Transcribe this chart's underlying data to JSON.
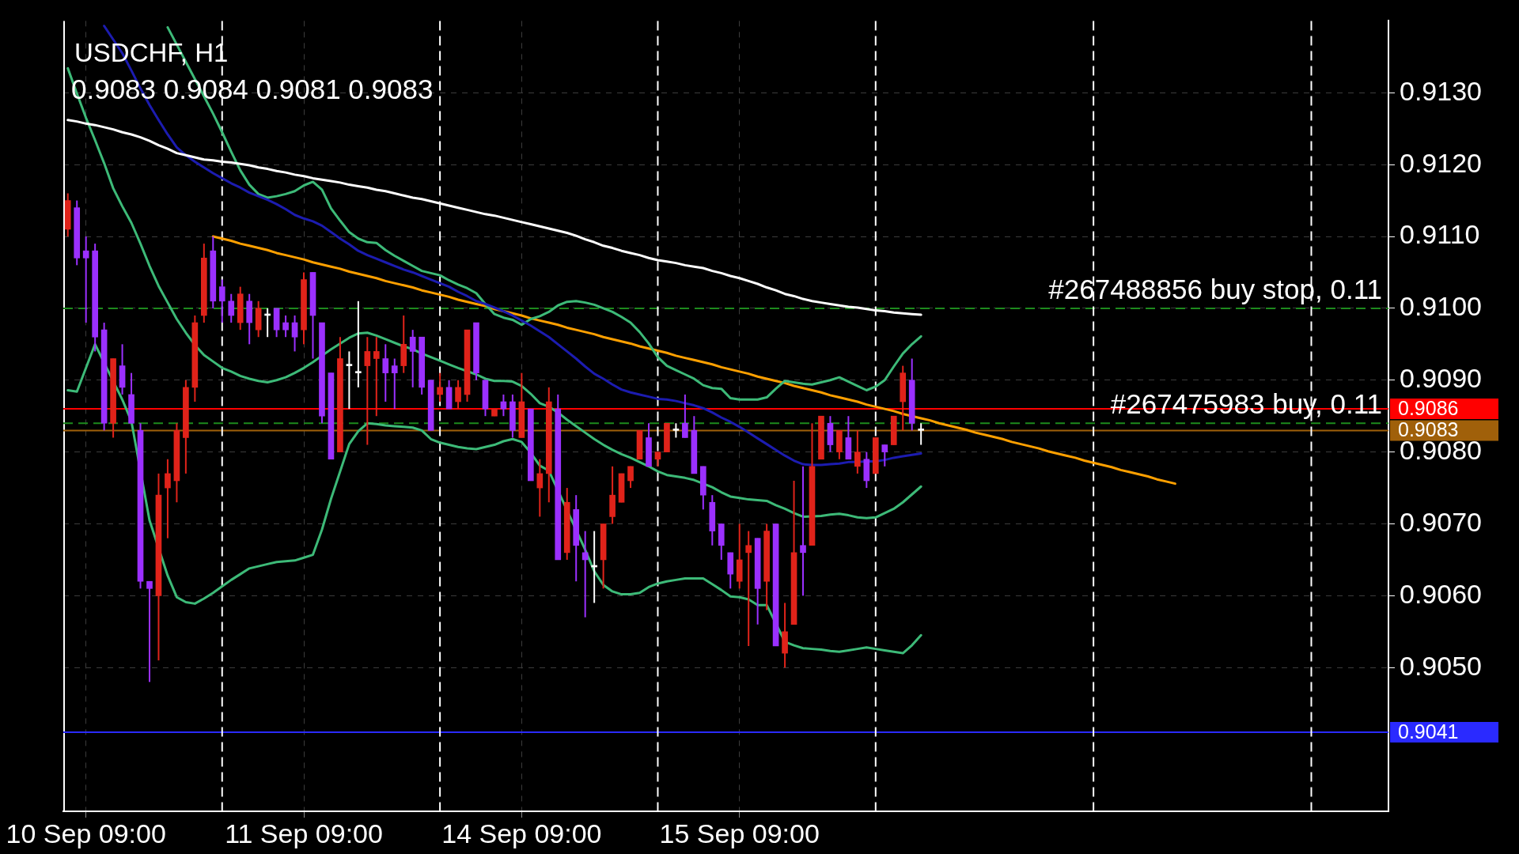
{
  "chart_data": {
    "type": "candlestick",
    "title": "USDCHF, H1",
    "subtitle": "0.9083 0.9084 0.9081 0.9083",
    "categories": [
      null,
      null,
      "10 Sep 09:00",
      null,
      null,
      null,
      null,
      null,
      null,
      null,
      null,
      null,
      null,
      null,
      null,
      null,
      null,
      null,
      null,
      null,
      null,
      null,
      null,
      null,
      null,
      null,
      "11 Sep 09:00",
      null,
      null,
      null,
      null,
      null,
      null,
      null,
      null,
      null,
      null,
      null,
      null,
      null,
      null,
      null,
      null,
      null,
      null,
      null,
      null,
      null,
      null,
      null,
      "14 Sep 09:00",
      null,
      null,
      null,
      null,
      null,
      null,
      null,
      null,
      null,
      null,
      null,
      null,
      null,
      null,
      null,
      null,
      null,
      null,
      null,
      null,
      null,
      null,
      null,
      "15 Sep 09:00",
      null,
      null,
      null,
      null,
      null,
      null,
      null,
      null,
      null,
      null,
      null,
      null,
      null,
      null,
      null,
      null,
      null,
      null,
      null,
      null,
      null,
      null,
      null,
      null,
      null,
      null,
      null,
      null,
      null,
      null,
      null,
      null,
      null,
      null,
      null,
      null,
      null,
      null,
      null,
      null,
      null,
      null,
      null,
      null,
      null,
      null,
      null,
      null,
      null,
      null,
      null,
      null,
      null,
      null,
      null,
      null,
      null,
      null,
      null,
      null,
      null,
      null,
      null,
      null,
      null,
      null,
      null,
      null,
      null,
      null,
      null
    ],
    "ohlc": [
      [
        0.9111,
        0.9116,
        0.911,
        0.9115
      ],
      [
        0.9114,
        0.9115,
        0.9106,
        0.9107
      ],
      [
        0.9108,
        0.911,
        0.9098,
        0.9107
      ],
      [
        0.9108,
        0.9109,
        0.9094,
        0.9096
      ],
      [
        0.9097,
        0.9098,
        0.9083,
        0.9084
      ],
      [
        0.9084,
        0.9093,
        0.9082,
        0.9093
      ],
      [
        0.9092,
        0.9095,
        0.9088,
        0.9089
      ],
      [
        0.9088,
        0.9091,
        0.9084,
        0.9084
      ],
      [
        0.9083,
        0.9084,
        0.9061,
        0.9062
      ],
      [
        0.9062,
        0.9062,
        0.9048,
        0.9061
      ],
      [
        0.906,
        0.9077,
        0.9051,
        0.9074
      ],
      [
        0.9075,
        0.9079,
        0.9068,
        0.9077
      ],
      [
        0.9076,
        0.9084,
        0.9073,
        0.9083
      ],
      [
        0.9082,
        0.909,
        0.9077,
        0.9089
      ],
      [
        0.9089,
        0.9099,
        0.9087,
        0.9098
      ],
      [
        0.9099,
        0.9109,
        0.9098,
        0.9107
      ],
      [
        0.9108,
        0.911,
        0.91,
        0.9101
      ],
      [
        0.9103,
        0.9104,
        0.9098,
        0.9101
      ],
      [
        0.9101,
        0.9102,
        0.9098,
        0.9099
      ],
      [
        0.9098,
        0.9103,
        0.9097,
        0.9102
      ],
      [
        0.9101,
        0.9102,
        0.9095,
        0.9098
      ],
      [
        0.9097,
        0.9101,
        0.9096,
        0.91
      ],
      [
        0.9099,
        0.91,
        0.9096,
        0.9099
      ],
      [
        0.91,
        0.91,
        0.9096,
        0.9097
      ],
      [
        0.9098,
        0.9099,
        0.9096,
        0.9097
      ],
      [
        0.9098,
        0.9099,
        0.9094,
        0.9096
      ],
      [
        0.9097,
        0.9105,
        0.9095,
        0.9104
      ],
      [
        0.9105,
        0.9105,
        0.9093,
        0.9099
      ],
      [
        0.9098,
        0.9098,
        0.9084,
        0.9085
      ],
      [
        0.9091,
        0.9091,
        0.9079,
        0.9079
      ],
      [
        0.908,
        0.9096,
        0.908,
        0.9093
      ],
      [
        0.9092,
        0.9094,
        0.9086,
        0.9092
      ],
      [
        0.9091,
        0.9101,
        0.9089,
        0.9091
      ],
      [
        0.9092,
        0.9096,
        0.9081,
        0.9094
      ],
      [
        0.9093,
        0.9096,
        0.9085,
        0.9094
      ],
      [
        0.9093,
        0.9095,
        0.9087,
        0.9091
      ],
      [
        0.9092,
        0.9093,
        0.9086,
        0.9091
      ],
      [
        0.9092,
        0.9099,
        0.9091,
        0.9095
      ],
      [
        0.9096,
        0.9097,
        0.9089,
        0.9094
      ],
      [
        0.9096,
        0.9096,
        0.9088,
        0.9089
      ],
      [
        0.909,
        0.909,
        0.9083,
        0.9083
      ],
      [
        0.9088,
        0.9091,
        0.9087,
        0.9089
      ],
      [
        0.9089,
        0.909,
        0.9086,
        0.9086
      ],
      [
        0.9087,
        0.909,
        0.9086,
        0.9089
      ],
      [
        0.9088,
        0.9097,
        0.9087,
        0.9097
      ],
      [
        0.9098,
        0.9098,
        0.909,
        0.9091
      ],
      [
        0.909,
        0.909,
        0.9085,
        0.9086
      ],
      [
        0.9085,
        0.9086,
        0.9085,
        0.9086
      ],
      [
        0.9087,
        0.9088,
        0.9085,
        0.9086
      ],
      [
        0.9087,
        0.9088,
        0.9082,
        0.9083
      ],
      [
        0.9082,
        0.9091,
        0.9082,
        0.9087
      ],
      [
        0.9086,
        0.9086,
        0.9076,
        0.9076
      ],
      [
        0.9075,
        0.9079,
        0.9071,
        0.9077
      ],
      [
        0.9077,
        0.9089,
        0.9073,
        0.9087
      ],
      [
        0.9086,
        0.9088,
        0.9065,
        0.9065
      ],
      [
        0.9066,
        0.9075,
        0.9065,
        0.9073
      ],
      [
        0.9072,
        0.9074,
        0.9062,
        0.9067
      ],
      [
        0.9066,
        0.9069,
        0.9057,
        0.9065
      ],
      [
        0.9064,
        0.9069,
        0.9059,
        0.9064
      ],
      [
        0.9065,
        0.907,
        0.9061,
        0.907
      ],
      [
        0.9071,
        0.9078,
        0.907,
        0.9074
      ],
      [
        0.9073,
        0.9077,
        0.9073,
        0.9077
      ],
      [
        0.9076,
        0.9078,
        0.9075,
        0.9078
      ],
      [
        0.9079,
        0.9083,
        0.9079,
        0.9083
      ],
      [
        0.9082,
        0.9084,
        0.9078,
        0.9078
      ],
      [
        0.9079,
        0.908,
        0.9078,
        0.908
      ],
      [
        0.908,
        0.9084,
        0.908,
        0.9084
      ],
      [
        0.9083,
        0.9084,
        0.9082,
        0.9083
      ],
      [
        0.9084,
        0.9088,
        0.9082,
        0.9082
      ],
      [
        0.9083,
        0.9085,
        0.9077,
        0.9077
      ],
      [
        0.9078,
        0.9078,
        0.9072,
        0.9074
      ],
      [
        0.9073,
        0.9074,
        0.9067,
        0.9069
      ],
      [
        0.907,
        0.907,
        0.9065,
        0.9067
      ],
      [
        0.9066,
        0.9066,
        0.9061,
        0.9063
      ],
      [
        0.9062,
        0.907,
        0.9061,
        0.9065
      ],
      [
        0.9066,
        0.9069,
        0.9053,
        0.9067
      ],
      [
        0.9068,
        0.9068,
        0.9056,
        0.9061
      ],
      [
        0.9062,
        0.907,
        0.9058,
        0.9069
      ],
      [
        0.907,
        0.907,
        0.9053,
        0.9053
      ],
      [
        0.9052,
        0.9059,
        0.905,
        0.9055
      ],
      [
        0.9056,
        0.9076,
        0.9056,
        0.9066
      ],
      [
        0.9067,
        0.9078,
        0.906,
        0.9066
      ],
      [
        0.9067,
        0.9084,
        0.9067,
        0.9078
      ],
      [
        0.9079,
        0.9085,
        0.9079,
        0.9085
      ],
      [
        0.9084,
        0.9085,
        0.908,
        0.9081
      ],
      [
        0.908,
        0.9083,
        0.9079,
        0.9083
      ],
      [
        0.9082,
        0.9085,
        0.9079,
        0.9079
      ],
      [
        0.9078,
        0.9083,
        0.9077,
        0.908
      ],
      [
        0.9079,
        0.908,
        0.9075,
        0.9076
      ],
      [
        0.9077,
        0.9082,
        0.9077,
        0.9082
      ],
      [
        0.9081,
        0.9081,
        0.9078,
        0.908
      ],
      [
        0.9081,
        0.9085,
        0.9081,
        0.9085
      ],
      [
        0.9087,
        0.9092,
        0.9083,
        0.9091
      ],
      [
        0.909,
        0.9093,
        0.9083,
        0.9084
      ],
      [
        0.9083,
        0.9084,
        0.9081,
        0.9083
      ],
      null,
      null,
      null,
      null,
      null,
      null,
      null,
      null,
      null,
      null,
      null,
      null,
      null,
      null,
      null,
      null,
      null,
      null,
      null,
      null,
      null,
      null,
      null,
      null,
      null,
      null,
      null,
      null,
      null,
      null,
      null,
      null,
      null,
      null,
      null,
      null,
      null,
      null,
      null,
      null,
      null,
      null,
      null,
      null,
      null,
      null,
      null,
      null,
      null,
      null,
      null
    ],
    "colors": [
      "#e0231a",
      "#9b30ff",
      "#9b30ff",
      "#9b30ff",
      "#9b30ff",
      "#e0231a",
      "#9b30ff",
      "#9b30ff",
      "#9b30ff",
      "#9b30ff",
      "#e0231a",
      "#e0231a",
      "#e0231a",
      "#e0231a",
      "#e0231a",
      "#e0231a",
      "#9b30ff",
      "#9b30ff",
      "#9b30ff",
      "#e0231a",
      "#9b30ff",
      "#e0231a",
      "#ffffff",
      "#9b30ff",
      "#9b30ff",
      "#9b30ff",
      "#e0231a",
      "#9b30ff",
      "#9b30ff",
      "#9b30ff",
      "#e0231a",
      "#ffffff",
      "#ffffff",
      "#e0231a",
      "#e0231a",
      "#9b30ff",
      "#9b30ff",
      "#e0231a",
      "#9b30ff",
      "#9b30ff",
      "#9b30ff",
      "#e0231a",
      "#9b30ff",
      "#e0231a",
      "#e0231a",
      "#9b30ff",
      "#9b30ff",
      "#e0231a",
      "#9b30ff",
      "#9b30ff",
      "#e0231a",
      "#9b30ff",
      "#e0231a",
      "#e0231a",
      "#9b30ff",
      "#e0231a",
      "#9b30ff",
      "#9b30ff",
      "#ffffff",
      "#e0231a",
      "#e0231a",
      "#e0231a",
      "#e0231a",
      "#e0231a",
      "#9b30ff",
      "#e0231a",
      "#e0231a",
      "#ffffff",
      "#9b30ff",
      "#9b30ff",
      "#9b30ff",
      "#9b30ff",
      "#9b30ff",
      "#9b30ff",
      "#e0231a",
      "#e0231a",
      "#9b30ff",
      "#e0231a",
      "#9b30ff",
      "#e0231a",
      "#e0231a",
      "#9b30ff",
      "#e0231a",
      "#e0231a",
      "#9b30ff",
      "#e0231a",
      "#9b30ff",
      "#e0231a",
      "#9b30ff",
      "#e0231a",
      "#9b30ff",
      "#e0231a",
      "#e0231a",
      "#9b30ff",
      "#ffffff",
      null,
      null,
      null,
      null,
      null,
      null,
      null,
      null,
      null,
      null,
      null,
      null,
      null,
      null,
      null,
      null,
      null,
      null,
      null,
      null,
      null,
      null,
      null,
      null,
      null,
      null,
      null,
      null,
      null,
      null,
      null,
      null,
      null,
      null,
      null,
      null,
      null,
      null,
      null,
      null,
      null,
      null,
      null,
      null,
      null,
      null,
      null,
      null,
      null,
      null,
      null
    ],
    "series": [
      {
        "type": "line",
        "color": "#ffffff",
        "values": [
          0.91262,
          0.9126,
          0.91257,
          0.91255,
          0.91252,
          0.91249,
          0.91245,
          0.91242,
          0.91238,
          0.91233,
          0.91227,
          0.91222,
          0.91216,
          0.91213,
          0.9121,
          0.91207,
          0.91206,
          0.91204,
          0.91203,
          0.91201,
          0.91199,
          0.91196,
          0.91194,
          0.91191,
          0.91189,
          0.91186,
          0.91184,
          0.91181,
          0.91179,
          0.91177,
          0.91175,
          0.91172,
          0.9117,
          0.91168,
          0.91165,
          0.91163,
          0.9116,
          0.91157,
          0.91154,
          0.91152,
          0.91149,
          0.91146,
          0.91143,
          0.9114,
          0.91137,
          0.91134,
          0.91131,
          0.91129,
          0.91126,
          0.91123,
          0.9112,
          0.91117,
          0.91114,
          0.91111,
          0.91108,
          0.91105,
          0.91101,
          0.91096,
          0.91092,
          0.91087,
          0.91084,
          0.9108,
          0.91077,
          0.91074,
          0.9107,
          0.91067,
          0.91065,
          0.91063,
          0.9106,
          0.91058,
          0.91056,
          0.91052,
          0.91049,
          0.91045,
          0.91042,
          0.91038,
          0.91034,
          0.91029,
          0.91025,
          0.9102,
          0.91017,
          0.91013,
          0.9101,
          0.91008,
          0.91006,
          0.91004,
          0.91002,
          0.91001,
          0.90999,
          0.90997,
          0.90996,
          0.90994,
          0.90993,
          0.90992,
          0.90991,
          null,
          null,
          null,
          null,
          null,
          null,
          null,
          null,
          null,
          null,
          null,
          null,
          null,
          null,
          null,
          null,
          null,
          null,
          null,
          null,
          null,
          null,
          null,
          null,
          null,
          null,
          null,
          null,
          null,
          null,
          null,
          null,
          null,
          null,
          null,
          null,
          null,
          null,
          null,
          null,
          null,
          null,
          null,
          null,
          null,
          null,
          null,
          null,
          null,
          null,
          null
        ]
      },
      {
        "type": "line",
        "color": "#1c1cb0",
        "values": [
          null,
          null,
          null,
          null,
          0.91393,
          0.91374,
          0.91355,
          0.91331,
          0.91306,
          0.91283,
          0.91262,
          0.91242,
          0.91224,
          0.91213,
          0.91204,
          0.91196,
          0.91188,
          0.91181,
          0.91174,
          0.91168,
          0.91161,
          0.91156,
          0.91151,
          0.91145,
          0.91138,
          0.9113,
          0.91125,
          0.91121,
          0.91115,
          0.91106,
          0.91097,
          0.91089,
          0.9108,
          0.91074,
          0.91069,
          0.91064,
          0.91059,
          0.91054,
          0.9105,
          0.91045,
          0.9104,
          0.91035,
          0.9103,
          0.91023,
          0.91017,
          0.9101,
          0.91006,
          0.91001,
          0.90996,
          0.9099,
          0.90983,
          0.90976,
          0.90968,
          0.9096,
          0.9095,
          0.9094,
          0.9093,
          0.90919,
          0.90909,
          0.90902,
          0.90894,
          0.90887,
          0.90883,
          0.9088,
          0.90877,
          0.90874,
          0.90873,
          0.90871,
          0.90868,
          0.90865,
          0.90861,
          0.90855,
          0.90848,
          0.90842,
          0.90835,
          0.90827,
          0.90819,
          0.90811,
          0.90803,
          0.90795,
          0.90788,
          0.90783,
          0.90782,
          0.90782,
          0.90783,
          0.90784,
          0.90786,
          0.90786,
          0.90787,
          0.90787,
          0.90789,
          0.90792,
          0.90794,
          0.90796,
          0.90798,
          null,
          null,
          null,
          null,
          null,
          null,
          null,
          null,
          null,
          null,
          null,
          null,
          null,
          null,
          null,
          null,
          null,
          null,
          null,
          null,
          null,
          null,
          null,
          null,
          null,
          null,
          null,
          null,
          null,
          null,
          null,
          null,
          null,
          null,
          null,
          null,
          null,
          null,
          null,
          null,
          null,
          null,
          null,
          null,
          null,
          null,
          null,
          null,
          null,
          null,
          null
        ]
      },
      {
        "type": "line",
        "color": "#3dba78",
        "values": [
          null,
          null,
          null,
          null,
          null,
          null,
          null,
          null,
          null,
          null,
          null,
          0.91391,
          0.91367,
          0.91343,
          0.91319,
          0.91295,
          0.91271,
          0.91245,
          0.91218,
          0.91192,
          0.91172,
          0.91159,
          0.91154,
          0.91156,
          0.91159,
          0.91163,
          0.91171,
          0.91176,
          0.91165,
          0.91139,
          0.91122,
          0.91106,
          0.91097,
          0.91092,
          0.91091,
          0.91081,
          0.91073,
          0.91066,
          0.91059,
          0.91052,
          0.91049,
          0.91046,
          0.91039,
          0.91033,
          0.91028,
          0.91021,
          0.91006,
          0.90992,
          0.90987,
          0.90984,
          0.90977,
          0.90985,
          0.90989,
          0.90995,
          0.91004,
          0.91009,
          0.9101,
          0.91008,
          0.91005,
          0.91,
          0.90995,
          0.90988,
          0.9098,
          0.90967,
          0.90951,
          0.90932,
          0.9092,
          0.90914,
          0.90908,
          0.90902,
          0.90893,
          0.90889,
          0.90888,
          0.90875,
          0.90873,
          0.90873,
          0.90873,
          0.90876,
          0.90888,
          0.90899,
          0.90897,
          0.90895,
          0.90894,
          0.90897,
          0.909,
          0.90904,
          0.90898,
          0.90892,
          0.90886,
          0.90891,
          0.909,
          0.90919,
          0.90937,
          0.9095,
          0.90961,
          null,
          null,
          null,
          null,
          null,
          null,
          null,
          null,
          null,
          null,
          null,
          null,
          null,
          null,
          null,
          null,
          null,
          null,
          null,
          null,
          null,
          null,
          null,
          null,
          null,
          null,
          null,
          null,
          null,
          null,
          null,
          null,
          null,
          null,
          null,
          null,
          null,
          null,
          null,
          null,
          null,
          null,
          null,
          null,
          null,
          null,
          null,
          null,
          null,
          null,
          null
        ]
      },
      {
        "type": "line",
        "color": "#3dba78",
        "values": [
          0.91334,
          0.91299,
          0.91265,
          0.91234,
          0.91202,
          0.91167,
          0.91142,
          0.91119,
          0.9109,
          0.91059,
          0.91031,
          0.91008,
          0.90985,
          0.90966,
          0.90949,
          0.90935,
          0.90926,
          0.90917,
          0.90912,
          0.90906,
          0.90902,
          0.90899,
          0.90897,
          0.909,
          0.90904,
          0.9091,
          0.90917,
          0.90925,
          0.90934,
          0.90943,
          0.90951,
          0.90959,
          0.90965,
          0.90966,
          0.90962,
          0.90957,
          0.90952,
          0.90947,
          0.90943,
          0.90937,
          0.90932,
          0.90927,
          0.90922,
          0.90917,
          null,
          0.90908,
          0.90902,
          0.90899,
          0.90899,
          0.90898,
          0.90892,
          0.90881,
          0.90868,
          0.90863,
          0.90855,
          0.90845,
          0.90836,
          0.90827,
          0.90818,
          0.9081,
          0.90803,
          0.90797,
          0.90792,
          0.90786,
          0.9078,
          0.90773,
          0.90768,
          0.90766,
          0.90764,
          0.90761,
          0.90756,
          0.90751,
          0.90744,
          0.90738,
          0.90736,
          0.90734,
          0.90733,
          0.90732,
          0.90726,
          0.90721,
          0.90715,
          0.9071,
          null,
          0.90711,
          0.90713,
          0.90714,
          0.90712,
          0.90709,
          0.90708,
          0.90709,
          0.90715,
          0.90721,
          0.9073,
          0.90741,
          0.90752,
          null,
          null,
          null,
          null,
          null,
          null,
          null,
          null,
          null,
          null,
          null,
          null,
          null,
          null,
          null,
          null,
          null,
          null,
          null,
          null,
          null,
          null,
          null,
          null,
          null,
          null,
          null,
          null,
          null,
          null,
          null,
          null,
          null,
          null,
          null,
          null,
          null,
          null,
          null,
          null,
          null,
          null,
          null,
          null,
          null,
          null,
          null,
          null,
          null,
          null,
          null
        ]
      },
      {
        "type": "line",
        "color": "#3dba78",
        "values": [
          0.90886,
          0.90884,
          0.90917,
          0.9095,
          null,
          null,
          0.90873,
          0.90843,
          null,
          0.90705,
          null,
          0.90628,
          0.90598,
          0.90591,
          0.90589,
          0.90596,
          0.90604,
          0.90613,
          0.90622,
          0.9063,
          0.90638,
          0.90641,
          0.90644,
          0.90647,
          0.90648,
          0.90649,
          0.90653,
          0.90657,
          0.90692,
          0.90735,
          0.90773,
          0.90811,
          0.90829,
          0.9084,
          0.90839,
          0.90837,
          0.90836,
          0.90835,
          0.90834,
          0.9083,
          0.90818,
          0.90813,
          0.9081,
          0.90807,
          0.90805,
          0.90804,
          0.90807,
          0.9081,
          0.90815,
          0.90818,
          0.90814,
          0.90799,
          0.90781,
          0.90774,
          null,
          null,
          null,
          0.90664,
          0.90634,
          0.90615,
          0.90606,
          0.90602,
          0.90602,
          0.90604,
          0.90612,
          0.90617,
          0.9062,
          0.90622,
          0.90624,
          0.90624,
          0.90624,
          0.90616,
          0.90608,
          0.90599,
          0.90598,
          0.90595,
          0.90587,
          0.90587,
          null,
          0.90536,
          0.90531,
          0.90527,
          0.90526,
          0.90525,
          0.90523,
          0.90522,
          0.90524,
          0.90526,
          0.90528,
          0.90526,
          0.90524,
          0.90522,
          0.9052,
          0.90531,
          0.90545,
          null,
          null,
          null,
          null,
          null,
          null,
          null,
          null,
          null,
          null,
          null,
          null,
          null,
          null,
          null,
          null,
          null,
          null,
          null,
          null,
          null,
          null,
          null,
          null,
          null,
          null,
          null,
          null,
          null,
          null,
          null,
          null,
          null,
          null,
          null,
          null,
          null,
          null,
          null,
          null,
          null,
          null,
          null,
          null,
          null,
          null,
          null,
          null,
          null,
          null,
          null
        ]
      },
      {
        "type": "line",
        "color": "#ffa000",
        "values": [
          null,
          null,
          null,
          null,
          null,
          null,
          null,
          null,
          null,
          null,
          null,
          null,
          null,
          null,
          null,
          null,
          0.911,
          0.91097,
          0.91094,
          0.9109,
          0.91087,
          0.91084,
          0.91081,
          0.91077,
          0.91074,
          0.91071,
          0.91068,
          0.91064,
          0.91061,
          0.91058,
          0.91055,
          0.91051,
          0.91048,
          0.91045,
          0.91042,
          0.91038,
          0.91035,
          0.91032,
          0.91029,
          0.91025,
          0.91022,
          0.91019,
          0.91016,
          0.91012,
          0.91009,
          0.91006,
          0.91003,
          0.90999,
          0.90996,
          0.90993,
          0.9099,
          0.90986,
          0.90983,
          0.9098,
          0.90977,
          0.90973,
          0.9097,
          0.90967,
          0.90964,
          0.9096,
          0.90957,
          0.90954,
          0.90951,
          0.90947,
          0.90944,
          0.90941,
          0.90938,
          0.90934,
          0.90931,
          0.90928,
          0.90925,
          0.90922,
          0.90918,
          0.90915,
          0.90912,
          0.90909,
          0.90905,
          0.90902,
          0.90899,
          0.90896,
          0.90892,
          0.90889,
          0.90886,
          0.90883,
          0.90879,
          0.90876,
          0.90873,
          0.9087,
          0.90866,
          0.90863,
          0.9086,
          0.90857,
          0.90853,
          0.9085,
          0.90847,
          0.90844,
          0.9084,
          0.90837,
          0.90834,
          0.90831,
          0.90827,
          0.90824,
          0.90821,
          0.90818,
          0.90814,
          0.90811,
          0.90808,
          0.90805,
          0.90801,
          0.90798,
          0.90795,
          0.90792,
          0.90788,
          0.90785,
          0.90782,
          0.90779,
          0.90775,
          0.90772,
          0.90769,
          0.90766,
          0.90762,
          0.90759,
          0.90756,
          null,
          null,
          null,
          null,
          null,
          null,
          null,
          null,
          null,
          null,
          null,
          null,
          null,
          null,
          null,
          null,
          null,
          null,
          null,
          null,
          null,
          null,
          null
        ]
      }
    ],
    "ylim": [
      0.903,
      0.914
    ],
    "yticks": [
      {
        "value": 0.905,
        "label": "0.9050"
      },
      {
        "value": 0.906,
        "label": "0.9060"
      },
      {
        "value": 0.907,
        "label": "0.9070"
      },
      {
        "value": 0.908,
        "label": "0.9080"
      },
      {
        "value": 0.909,
        "label": "0.9090"
      },
      {
        "value": 0.91,
        "label": "0.9100"
      },
      {
        "value": 0.911,
        "label": "0.9110"
      },
      {
        "value": 0.912,
        "label": "0.9120"
      },
      {
        "value": 0.913,
        "label": "0.9130"
      }
    ],
    "ref_lines": [
      {
        "axis": "y",
        "value": 0.91,
        "label": "#267488856 buy stop, 0.11",
        "color": "#1d8a1d",
        "line_style": "dashed"
      },
      {
        "axis": "y",
        "value": 0.9084,
        "label": "#267475983 buy, 0.11",
        "color": "#1d8a1d",
        "line_style": "dashed"
      },
      {
        "axis": "y",
        "value": 0.9086,
        "label": "0.9086",
        "color": "#ff0000",
        "line_style": "solid"
      },
      {
        "axis": "y",
        "value": 0.9083,
        "label": "0.9083",
        "color": "#a0600a",
        "line_style": "solid"
      },
      {
        "axis": "y",
        "value": 0.9041,
        "label": "0.9041",
        "color": "#2a2aff",
        "line_style": "solid"
      }
    ],
    "grid": true,
    "marker": "none"
  }
}
